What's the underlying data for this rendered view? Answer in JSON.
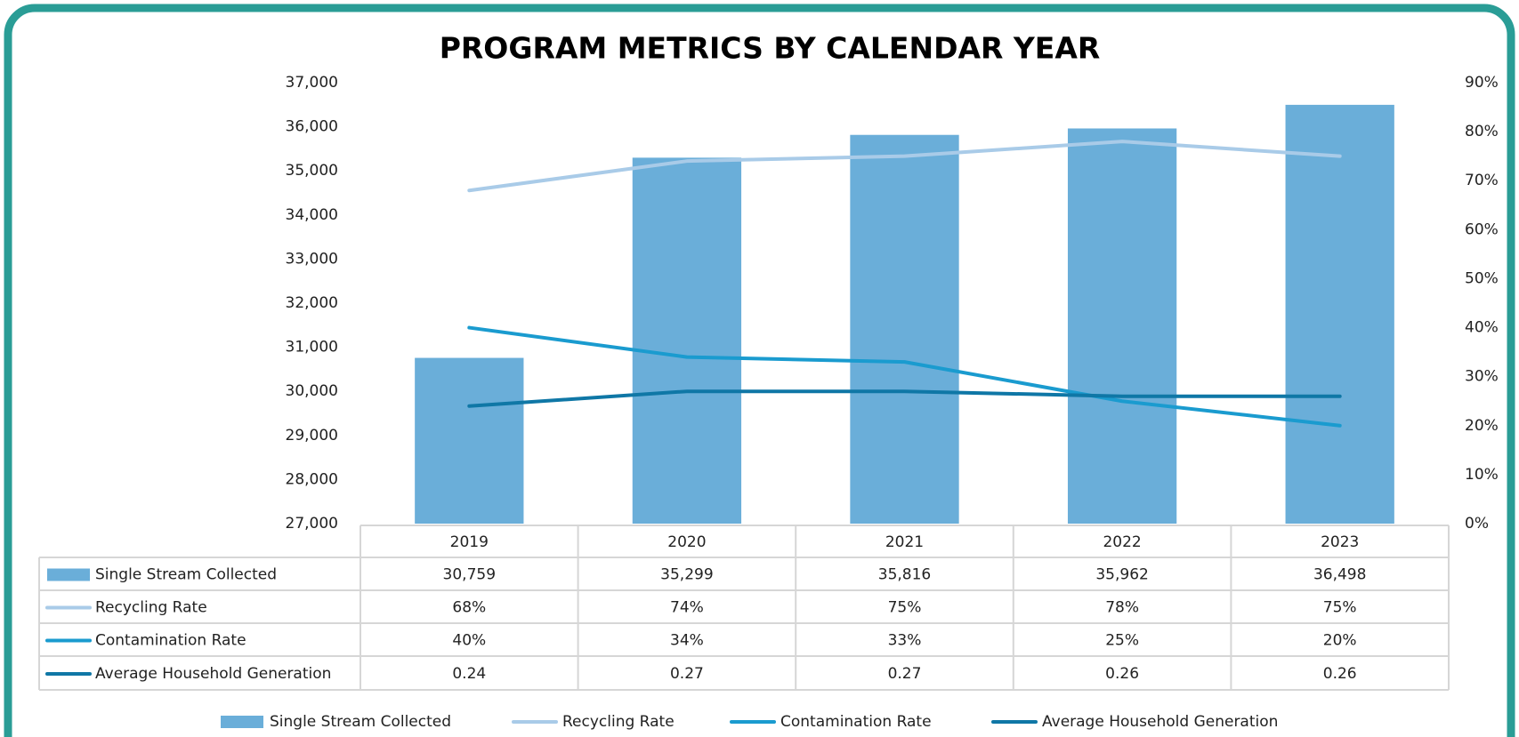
{
  "chart_data": {
    "type": "bar",
    "title": "PROGRAM METRICS BY CALENDAR YEAR",
    "categories": [
      "2019",
      "2020",
      "2021",
      "2022",
      "2023"
    ],
    "ylim": [
      27000,
      37000
    ],
    "yticks": [
      {
        "value": 27000,
        "label": "27,000"
      },
      {
        "value": 28000,
        "label": "28,000"
      },
      {
        "value": 29000,
        "label": "29,000"
      },
      {
        "value": 30000,
        "label": "30,000"
      },
      {
        "value": 31000,
        "label": "31,000"
      },
      {
        "value": 32000,
        "label": "32,000"
      },
      {
        "value": 33000,
        "label": "33,000"
      },
      {
        "value": 34000,
        "label": "34,000"
      },
      {
        "value": 35000,
        "label": "35,000"
      },
      {
        "value": 36000,
        "label": "36,000"
      },
      {
        "value": 37000,
        "label": "37,000"
      }
    ],
    "y2lim": [
      0,
      0.9
    ],
    "y2ticks": [
      {
        "value": 0,
        "label": "0%"
      },
      {
        "value": 0.1,
        "label": "10%"
      },
      {
        "value": 0.2,
        "label": "20%"
      },
      {
        "value": 0.3,
        "label": "30%"
      },
      {
        "value": 0.4,
        "label": "40%"
      },
      {
        "value": 0.5,
        "label": "50%"
      },
      {
        "value": 0.6,
        "label": "60%"
      },
      {
        "value": 0.7,
        "label": "70%"
      },
      {
        "value": 0.8,
        "label": "80%"
      },
      {
        "value": 0.9,
        "label": "90%"
      }
    ],
    "series": [
      {
        "name": "Single Stream Collected",
        "type": "bar",
        "color": "#6aaed9",
        "values": [
          30759,
          35299,
          35816,
          35962,
          36498
        ],
        "value_labels": [
          "30,759",
          "35,299",
          "35,816",
          "35,962",
          "36,498"
        ]
      },
      {
        "name": "Recycling Rate",
        "type": "line",
        "axis": "y2",
        "color": "#a9cbe8",
        "values": [
          0.68,
          0.74,
          0.75,
          0.78,
          0.75
        ],
        "value_labels": [
          "68%",
          "74%",
          "75%",
          "78%",
          "75%"
        ]
      },
      {
        "name": "Contamination Rate",
        "type": "line",
        "axis": "y2",
        "color": "#1a9bcf",
        "values": [
          0.4,
          0.34,
          0.33,
          0.25,
          0.2
        ],
        "value_labels": [
          "40%",
          "34%",
          "33%",
          "25%",
          "20%"
        ]
      },
      {
        "name": "Average Household Generation",
        "type": "line",
        "axis": "y2",
        "color": "#0f77a6",
        "values": [
          0.24,
          0.27,
          0.27,
          0.26,
          0.26
        ]
      }
    ]
  }
}
